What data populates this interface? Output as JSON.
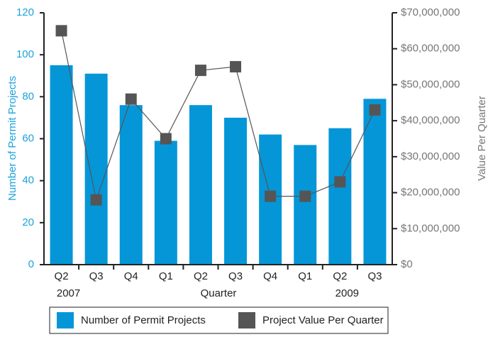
{
  "chart_data": {
    "type": "bar_line",
    "x_label": "Quarter",
    "y_label": "Number of Permit Projects",
    "y2_label": "Value Per Quarter",
    "categories": [
      "Q2",
      "Q3",
      "Q4",
      "Q1",
      "Q2",
      "Q3",
      "Q4",
      "Q1",
      "Q2",
      "Q3"
    ],
    "year_labels": [
      "2007",
      null,
      null,
      null,
      null,
      null,
      null,
      null,
      "2009",
      null
    ],
    "series": [
      {
        "name": "Number of Permit Projects",
        "type": "bar",
        "color": "#0596d8",
        "values": [
          95,
          91,
          76,
          59,
          76,
          70,
          62,
          57,
          65,
          79
        ]
      },
      {
        "name": "Project Value Per Quarter",
        "type": "line",
        "axis": "y2",
        "color": "#555555",
        "values": [
          65000000,
          18000000,
          46000000,
          35000000,
          54000000,
          55000000,
          19000000,
          19000000,
          23000000,
          43000000
        ]
      }
    ],
    "ylim": [
      0,
      120
    ],
    "yticks": [
      0,
      20,
      40,
      60,
      80,
      100,
      120
    ],
    "y2lim": [
      0,
      70000000
    ],
    "y2ticks": [
      {
        "value": 0,
        "label": "$0"
      },
      {
        "value": 10000000,
        "label": "$10,000,000"
      },
      {
        "value": 20000000,
        "label": "$20,000,000"
      },
      {
        "value": 30000000,
        "label": "$30,000,000"
      },
      {
        "value": 40000000,
        "label": "$40,000,000"
      },
      {
        "value": 50000000,
        "label": "$50,000,000"
      },
      {
        "value": 60000000,
        "label": "$60,000,000"
      },
      {
        "value": 70000000,
        "label": "$70,000,000"
      }
    ],
    "legend": "bottom"
  }
}
